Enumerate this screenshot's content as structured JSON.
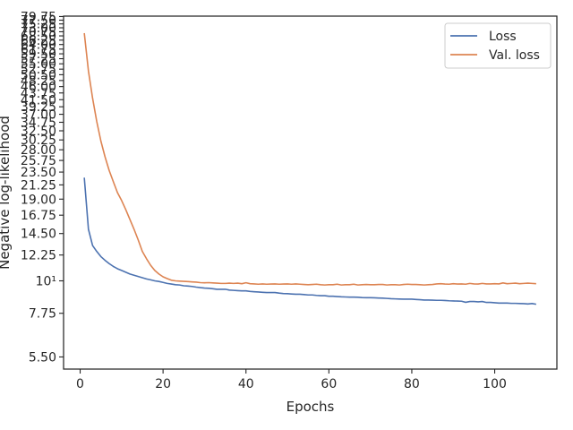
{
  "chart_data": {
    "type": "line",
    "xlabel": "Epochs",
    "ylabel": "Negative log-likelihood",
    "yscale": "log",
    "xlim": [
      -4,
      115
    ],
    "ylim": [
      5.0,
      80.0
    ],
    "grid": false,
    "legend_position": "top-right",
    "xticks": [
      0,
      20,
      40,
      60,
      80,
      100
    ],
    "xtick_labels": [
      "0",
      "20",
      "40",
      "60",
      "80",
      "100"
    ],
    "yticks": [
      5.5,
      7.75,
      10,
      12.25,
      14.5,
      16.75,
      19.0,
      21.25,
      23.5,
      25.75,
      28.0,
      30.25,
      32.5,
      34.75,
      37.0,
      39.25,
      41.5,
      43.75,
      46.0,
      48.25,
      50.5,
      52.75,
      55.0,
      57.25,
      59.5,
      61.75,
      64.0,
      66.25,
      68.5,
      70.75,
      73.0,
      75.25,
      77.5,
      79.75
    ],
    "ytick_labels": [
      "5.50",
      "7.75",
      "10¹",
      "12.25",
      "14.50",
      "16.75",
      "19.00",
      "21.25",
      "23.50",
      "25.75",
      "28.00",
      "30.25",
      "32.50",
      "34.75",
      "37.00",
      "39.25",
      "41.50",
      "43.75",
      "46.00",
      "48.25",
      "50.50",
      "52.75",
      "55.00",
      "57.25",
      "59.50",
      "61.75",
      "64.00",
      "66.25",
      "68.50",
      "70.75",
      "73.00",
      "75.25",
      "77.50",
      "79.75"
    ],
    "series": [
      {
        "name": "Loss",
        "color": "#4c72b0",
        "points": [
          [
            1,
            22.5
          ],
          [
            2,
            15.0
          ],
          [
            3,
            13.2
          ],
          [
            4,
            12.6
          ],
          [
            5,
            12.1
          ],
          [
            6,
            11.75
          ],
          [
            7,
            11.45
          ],
          [
            8,
            11.2
          ],
          [
            9,
            11.0
          ],
          [
            10,
            10.85
          ],
          [
            11,
            10.7
          ],
          [
            12,
            10.55
          ],
          [
            13,
            10.45
          ],
          [
            14,
            10.35
          ],
          [
            15,
            10.25
          ],
          [
            16,
            10.15
          ],
          [
            17,
            10.08
          ],
          [
            18,
            10.0
          ],
          [
            19,
            9.95
          ],
          [
            20,
            9.88
          ],
          [
            21,
            9.8
          ],
          [
            22,
            9.75
          ],
          [
            23,
            9.7
          ],
          [
            24,
            9.68
          ],
          [
            25,
            9.62
          ],
          [
            26,
            9.6
          ],
          [
            27,
            9.57
          ],
          [
            28,
            9.52
          ],
          [
            29,
            9.48
          ],
          [
            30,
            9.45
          ],
          [
            31,
            9.43
          ],
          [
            32,
            9.4
          ],
          [
            33,
            9.36
          ],
          [
            34,
            9.36
          ],
          [
            35,
            9.36
          ],
          [
            36,
            9.3
          ],
          [
            37,
            9.28
          ],
          [
            38,
            9.26
          ],
          [
            39,
            9.24
          ],
          [
            40,
            9.24
          ],
          [
            41,
            9.2
          ],
          [
            42,
            9.18
          ],
          [
            43,
            9.16
          ],
          [
            44,
            9.14
          ],
          [
            45,
            9.12
          ],
          [
            46,
            9.12
          ],
          [
            47,
            9.12
          ],
          [
            48,
            9.08
          ],
          [
            49,
            9.05
          ],
          [
            50,
            9.04
          ],
          [
            51,
            9.02
          ],
          [
            52,
            9.0
          ],
          [
            53,
            9.0
          ],
          [
            54,
            8.98
          ],
          [
            55,
            8.95
          ],
          [
            56,
            8.95
          ],
          [
            57,
            8.92
          ],
          [
            58,
            8.9
          ],
          [
            59,
            8.9
          ],
          [
            60,
            8.86
          ],
          [
            61,
            8.86
          ],
          [
            62,
            8.84
          ],
          [
            63,
            8.82
          ],
          [
            64,
            8.81
          ],
          [
            65,
            8.8
          ],
          [
            66,
            8.8
          ],
          [
            67,
            8.79
          ],
          [
            68,
            8.77
          ],
          [
            69,
            8.76
          ],
          [
            70,
            8.76
          ],
          [
            71,
            8.75
          ],
          [
            72,
            8.74
          ],
          [
            73,
            8.73
          ],
          [
            74,
            8.71
          ],
          [
            75,
            8.69
          ],
          [
            76,
            8.68
          ],
          [
            77,
            8.67
          ],
          [
            78,
            8.66
          ],
          [
            79,
            8.66
          ],
          [
            80,
            8.66
          ],
          [
            81,
            8.64
          ],
          [
            82,
            8.62
          ],
          [
            83,
            8.6
          ],
          [
            84,
            8.6
          ],
          [
            85,
            8.59
          ],
          [
            86,
            8.58
          ],
          [
            87,
            8.58
          ],
          [
            88,
            8.57
          ],
          [
            89,
            8.55
          ],
          [
            90,
            8.54
          ],
          [
            91,
            8.53
          ],
          [
            92,
            8.52
          ],
          [
            93,
            8.45
          ],
          [
            94,
            8.5
          ],
          [
            95,
            8.5
          ],
          [
            96,
            8.48
          ],
          [
            97,
            8.5
          ],
          [
            98,
            8.44
          ],
          [
            99,
            8.44
          ],
          [
            100,
            8.42
          ],
          [
            101,
            8.4
          ],
          [
            102,
            8.4
          ],
          [
            103,
            8.4
          ],
          [
            104,
            8.38
          ],
          [
            105,
            8.38
          ],
          [
            106,
            8.37
          ],
          [
            107,
            8.36
          ],
          [
            108,
            8.34
          ],
          [
            109,
            8.37
          ],
          [
            110,
            8.32
          ]
        ]
      },
      {
        "name": "Val. loss",
        "color": "#dd8452",
        "points": [
          [
            1,
            70.0
          ],
          [
            2,
            52.0
          ],
          [
            3,
            42.0
          ],
          [
            4,
            35.0
          ],
          [
            5,
            30.0
          ],
          [
            6,
            26.5
          ],
          [
            7,
            23.8
          ],
          [
            8,
            21.8
          ],
          [
            9,
            20.0
          ],
          [
            10,
            18.8
          ],
          [
            11,
            17.5
          ],
          [
            12,
            16.2
          ],
          [
            13,
            15.0
          ],
          [
            14,
            13.8
          ],
          [
            15,
            12.6
          ],
          [
            16,
            11.9
          ],
          [
            17,
            11.3
          ],
          [
            18,
            10.85
          ],
          [
            19,
            10.55
          ],
          [
            20,
            10.32
          ],
          [
            21,
            10.18
          ],
          [
            22,
            10.05
          ],
          [
            23,
            10.0
          ],
          [
            24,
            9.98
          ],
          [
            25,
            9.96
          ],
          [
            26,
            9.94
          ],
          [
            27,
            9.92
          ],
          [
            28,
            9.9
          ],
          [
            29,
            9.86
          ],
          [
            30,
            9.85
          ],
          [
            31,
            9.86
          ],
          [
            32,
            9.84
          ],
          [
            33,
            9.82
          ],
          [
            34,
            9.8
          ],
          [
            35,
            9.8
          ],
          [
            36,
            9.82
          ],
          [
            37,
            9.8
          ],
          [
            38,
            9.82
          ],
          [
            39,
            9.78
          ],
          [
            40,
            9.85
          ],
          [
            41,
            9.78
          ],
          [
            42,
            9.76
          ],
          [
            43,
            9.74
          ],
          [
            44,
            9.76
          ],
          [
            45,
            9.74
          ],
          [
            46,
            9.75
          ],
          [
            47,
            9.76
          ],
          [
            48,
            9.74
          ],
          [
            49,
            9.75
          ],
          [
            50,
            9.76
          ],
          [
            51,
            9.74
          ],
          [
            52,
            9.76
          ],
          [
            53,
            9.74
          ],
          [
            54,
            9.72
          ],
          [
            55,
            9.7
          ],
          [
            56,
            9.72
          ],
          [
            57,
            9.74
          ],
          [
            58,
            9.7
          ],
          [
            59,
            9.68
          ],
          [
            60,
            9.7
          ],
          [
            61,
            9.7
          ],
          [
            62,
            9.74
          ],
          [
            63,
            9.68
          ],
          [
            64,
            9.7
          ],
          [
            65,
            9.7
          ],
          [
            66,
            9.74
          ],
          [
            67,
            9.68
          ],
          [
            68,
            9.7
          ],
          [
            69,
            9.72
          ],
          [
            70,
            9.7
          ],
          [
            71,
            9.7
          ],
          [
            72,
            9.72
          ],
          [
            73,
            9.72
          ],
          [
            74,
            9.68
          ],
          [
            75,
            9.7
          ],
          [
            76,
            9.7
          ],
          [
            77,
            9.68
          ],
          [
            78,
            9.72
          ],
          [
            79,
            9.74
          ],
          [
            80,
            9.72
          ],
          [
            81,
            9.72
          ],
          [
            82,
            9.7
          ],
          [
            83,
            9.68
          ],
          [
            84,
            9.7
          ],
          [
            85,
            9.72
          ],
          [
            86,
            9.76
          ],
          [
            87,
            9.78
          ],
          [
            88,
            9.75
          ],
          [
            89,
            9.74
          ],
          [
            90,
            9.78
          ],
          [
            91,
            9.75
          ],
          [
            92,
            9.76
          ],
          [
            93,
            9.74
          ],
          [
            94,
            9.8
          ],
          [
            95,
            9.76
          ],
          [
            96,
            9.75
          ],
          [
            97,
            9.8
          ],
          [
            98,
            9.76
          ],
          [
            99,
            9.76
          ],
          [
            100,
            9.78
          ],
          [
            101,
            9.76
          ],
          [
            102,
            9.84
          ],
          [
            103,
            9.78
          ],
          [
            104,
            9.8
          ],
          [
            105,
            9.82
          ],
          [
            106,
            9.78
          ],
          [
            107,
            9.8
          ],
          [
            108,
            9.82
          ],
          [
            109,
            9.8
          ],
          [
            110,
            9.78
          ]
        ]
      }
    ]
  }
}
